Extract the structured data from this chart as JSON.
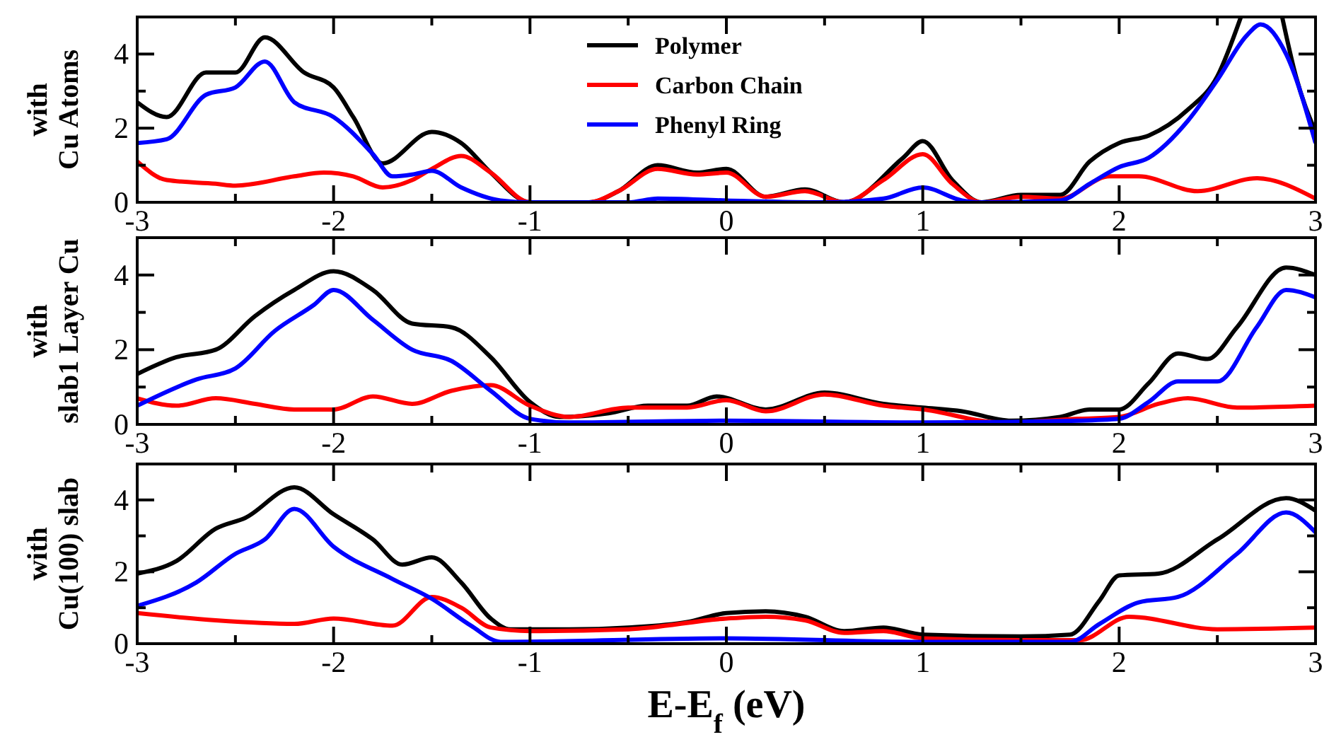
{
  "chart_data": [
    {
      "type": "line",
      "ylabel": "with\nCu Atoms",
      "xlim": [
        -3,
        3
      ],
      "ylim": [
        0,
        5
      ],
      "xticks": [
        -3,
        {
          "value": -2.5,
          "label": null
        },
        -2,
        {
          "value": -1.5,
          "label": null
        },
        -1,
        {
          "value": -0.5,
          "label": null
        },
        0,
        {
          "value": 0.5,
          "label": null
        },
        1,
        {
          "value": 1.5,
          "label": null
        },
        2,
        {
          "value": 2.5,
          "label": null
        },
        3
      ],
      "yticks": [
        0,
        {
          "value": 1,
          "label": null
        },
        2,
        {
          "value": 3,
          "label": null
        },
        4,
        {
          "value": 5,
          "label": null
        }
      ],
      "legend": "top",
      "line_style": "solid",
      "marker": "none",
      "grid": false,
      "series": [
        {
          "name": "Polymer",
          "color": "#000000",
          "x": [
            -3,
            -2.85,
            -2.65,
            -2.5,
            -2.35,
            -2.15,
            -2,
            -1.9,
            -1.75,
            -1.5,
            -1.35,
            -1.2,
            -1,
            -0.7,
            -0.55,
            -0.35,
            -0.15,
            0,
            0.2,
            0.4,
            0.6,
            0.9,
            1,
            1.15,
            1.3,
            1.5,
            1.7,
            1.85,
            2,
            2.15,
            2.35,
            2.5,
            2.62,
            2.72,
            2.83,
            2.9,
            3
          ],
          "values": [
            2.7,
            2.3,
            3.5,
            3.5,
            4.45,
            3.5,
            3.1,
            2.3,
            1.05,
            1.9,
            1.6,
            0.8,
            0,
            0,
            0.3,
            1.0,
            0.8,
            0.9,
            0.15,
            0.35,
            0,
            1.2,
            1.65,
            0.6,
            0,
            0.2,
            0.2,
            1.1,
            1.6,
            1.8,
            2.5,
            3.4,
            5.0,
            null,
            5.0,
            3.4,
            1.9
          ]
        },
        {
          "name": "Carbon Chain",
          "color": "#ff0000",
          "x": [
            -3,
            -2.85,
            -2.6,
            -2.5,
            -2.2,
            -2.05,
            -1.9,
            -1.75,
            -1.6,
            -1.5,
            -1.35,
            -1.2,
            -1,
            -0.7,
            -0.55,
            -0.35,
            -0.15,
            0,
            0.2,
            0.4,
            0.6,
            0.8,
            1,
            1.15,
            1.3,
            1.5,
            1.7,
            1.95,
            2.1,
            2.4,
            2.7,
            3
          ],
          "values": [
            1.1,
            0.6,
            0.5,
            0.45,
            0.7,
            0.8,
            0.7,
            0.4,
            0.6,
            0.9,
            1.25,
            0.8,
            0,
            0,
            0.3,
            0.9,
            0.75,
            0.8,
            0.15,
            0.3,
            0,
            0.6,
            1.3,
            0.5,
            0,
            0.15,
            0.1,
            0.7,
            0.7,
            0.3,
            0.65,
            0.1
          ]
        },
        {
          "name": "Phenyl Ring",
          "color": "#0000ff",
          "x": [
            -3,
            -2.85,
            -2.65,
            -2.5,
            -2.35,
            -2.2,
            -2,
            -1.8,
            -1.7,
            -1.6,
            -1.5,
            -1.35,
            -1.15,
            -1,
            -0.5,
            -0.35,
            0,
            0.5,
            0.8,
            1,
            1.2,
            1.3,
            1.7,
            1.85,
            2,
            2.15,
            2.35,
            2.5,
            2.65,
            2.72,
            2.85,
            3
          ],
          "values": [
            1.6,
            1.7,
            2.9,
            3.1,
            3.8,
            2.7,
            2.3,
            1.3,
            0.7,
            0.75,
            0.85,
            0.4,
            0.05,
            0,
            0,
            0.1,
            0.05,
            0,
            0.1,
            0.4,
            0.05,
            0,
            0.05,
            0.5,
            0.95,
            1.2,
            2.2,
            3.3,
            4.5,
            4.8,
            4.0,
            1.6
          ]
        }
      ]
    },
    {
      "type": "line",
      "ylabel": "with\nslab1 Layer Cu",
      "xlim": [
        -3,
        3
      ],
      "ylim": [
        0,
        5
      ],
      "xticks": [
        -3,
        {
          "value": -2.5,
          "label": null
        },
        -2,
        {
          "value": -1.5,
          "label": null
        },
        -1,
        {
          "value": -0.5,
          "label": null
        },
        0,
        {
          "value": 0.5,
          "label": null
        },
        1,
        {
          "value": 1.5,
          "label": null
        },
        2,
        {
          "value": 2.5,
          "label": null
        },
        3
      ],
      "yticks": [
        0,
        {
          "value": 1,
          "label": null
        },
        2,
        {
          "value": 3,
          "label": null
        },
        4,
        {
          "value": 5,
          "label": null
        }
      ],
      "line_style": "solid",
      "marker": "none",
      "grid": false,
      "series": [
        {
          "color": "#000000",
          "x": [
            -3,
            -2.8,
            -2.6,
            -2.4,
            -2.2,
            -2,
            -1.8,
            -1.6,
            -1.4,
            -1.2,
            -1,
            -0.85,
            -0.6,
            -0.4,
            -0.2,
            -0.05,
            0.2,
            0.5,
            0.8,
            1,
            1.2,
            1.45,
            1.7,
            1.85,
            2,
            2.15,
            2.3,
            2.45,
            2.6,
            2.85,
            3
          ],
          "values": [
            1.35,
            1.8,
            2.0,
            2.9,
            3.6,
            4.1,
            3.6,
            2.7,
            2.6,
            1.8,
            0.6,
            0.2,
            0.3,
            0.5,
            0.5,
            0.75,
            0.4,
            0.85,
            0.55,
            0.45,
            0.35,
            0.1,
            0.2,
            0.4,
            0.4,
            1.1,
            1.9,
            1.75,
            2.6,
            4.2,
            4.0
          ]
        },
        {
          "color": "#ff0000",
          "x": [
            -3,
            -2.8,
            -2.6,
            -2.4,
            -2.2,
            -2,
            -1.8,
            -1.6,
            -1.4,
            -1.2,
            -1,
            -0.8,
            -0.5,
            -0.2,
            0,
            0.2,
            0.5,
            0.8,
            1,
            1.4,
            1.8,
            2,
            2.2,
            2.35,
            2.6,
            3
          ],
          "values": [
            0.7,
            0.5,
            0.7,
            0.55,
            0.4,
            0.4,
            0.75,
            0.55,
            0.9,
            1.05,
            0.5,
            0.2,
            0.45,
            0.45,
            0.65,
            0.35,
            0.8,
            0.5,
            0.4,
            0.05,
            0.15,
            0.2,
            0.55,
            0.7,
            0.45,
            0.5
          ]
        },
        {
          "color": "#0000ff",
          "x": [
            -3,
            -2.7,
            -2.5,
            -2.3,
            -2.1,
            -2,
            -1.8,
            -1.6,
            -1.4,
            -1.2,
            -1,
            -0.8,
            0,
            1,
            1.8,
            2,
            2.15,
            2.3,
            2.5,
            2.7,
            2.85,
            3
          ],
          "values": [
            0.5,
            1.2,
            1.5,
            2.5,
            3.2,
            3.6,
            2.8,
            2.0,
            1.7,
            0.9,
            0.15,
            0.05,
            0.1,
            0.05,
            0.1,
            0.15,
            0.6,
            1.15,
            1.15,
            2.6,
            3.6,
            3.4
          ]
        }
      ]
    },
    {
      "type": "line",
      "ylabel": "with\nCu(100) slab",
      "xlabel": "E-E$_{f}$ (eV)",
      "xlim": [
        -3,
        3
      ],
      "ylim": [
        0,
        5
      ],
      "xticks": [
        -3,
        {
          "value": -2.5,
          "label": null
        },
        -2,
        {
          "value": -1.5,
          "label": null
        },
        -1,
        {
          "value": -0.5,
          "label": null
        },
        0,
        {
          "value": 0.5,
          "label": null
        },
        1,
        {
          "value": 1.5,
          "label": null
        },
        2,
        {
          "value": 2.5,
          "label": null
        },
        3
      ],
      "yticks": [
        0,
        {
          "value": 1,
          "label": null
        },
        2,
        {
          "value": 3,
          "label": null
        },
        4,
        {
          "value": 5,
          "label": null
        }
      ],
      "line_style": "solid",
      "marker": "none",
      "grid": false,
      "series": [
        {
          "color": "#000000",
          "x": [
            -3,
            -2.8,
            -2.6,
            -2.45,
            -2.2,
            -2,
            -1.8,
            -1.65,
            -1.5,
            -1.35,
            -1.2,
            -1.1,
            -0.8,
            -0.5,
            -0.2,
            0,
            0.2,
            0.4,
            0.6,
            0.8,
            1,
            1.5,
            1.75,
            1.9,
            2,
            2.2,
            2.5,
            2.85,
            3
          ],
          "values": [
            1.95,
            2.3,
            3.2,
            3.5,
            4.35,
            3.6,
            2.9,
            2.2,
            2.4,
            1.7,
            0.7,
            0.4,
            0.4,
            0.45,
            0.6,
            0.85,
            0.9,
            0.75,
            0.35,
            0.45,
            0.25,
            0.2,
            0.25,
            1.2,
            1.9,
            1.95,
            2.9,
            4.05,
            3.7
          ]
        },
        {
          "color": "#ff0000",
          "x": [
            -3,
            -2.6,
            -2.2,
            -2,
            -1.7,
            -1.5,
            -1.35,
            -1.2,
            -1,
            -0.5,
            0,
            0.2,
            0.4,
            0.6,
            0.8,
            1,
            1.5,
            1.8,
            2.05,
            2.5,
            3
          ],
          "values": [
            0.85,
            0.65,
            0.55,
            0.7,
            0.5,
            1.3,
            1.0,
            0.45,
            0.35,
            0.4,
            0.7,
            0.75,
            0.65,
            0.3,
            0.35,
            0.15,
            0.1,
            0.1,
            0.75,
            0.4,
            0.45
          ]
        },
        {
          "color": "#0000ff",
          "x": [
            -3,
            -2.7,
            -2.5,
            -2.35,
            -2.2,
            -2,
            -1.7,
            -1.5,
            -1.3,
            -1.15,
            0,
            1,
            1.75,
            1.9,
            2.1,
            2.3,
            2.6,
            2.85,
            3
          ],
          "values": [
            1.05,
            1.7,
            2.5,
            2.9,
            3.75,
            2.7,
            1.8,
            1.25,
            0.5,
            0.05,
            0.15,
            0.05,
            0.05,
            0.55,
            1.15,
            1.3,
            2.5,
            3.65,
            3.1
          ]
        }
      ]
    }
  ]
}
